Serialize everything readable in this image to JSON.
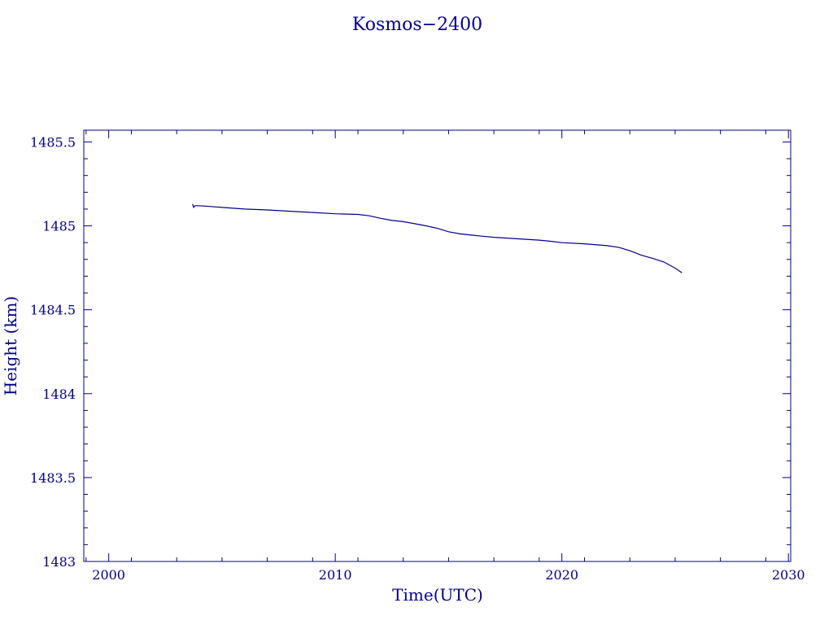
{
  "chart_data": {
    "type": "line",
    "title": "Kosmos−2400",
    "xlabel": "Time(UTC)",
    "ylabel": "Height (km)",
    "xlim": [
      1998.9,
      2030.1
    ],
    "ylim": [
      1483,
      1485.57
    ],
    "x_ticks": [
      2000,
      2010,
      2020,
      2030
    ],
    "x_tick_labels": [
      "2000",
      "2010",
      "2020",
      "2030"
    ],
    "y_ticks": [
      1483,
      1483.5,
      1484,
      1484.5,
      1485,
      1485.5
    ],
    "y_tick_labels": [
      "1483",
      "1483.5",
      "1484",
      "1484.5",
      "1485",
      "1485.5"
    ],
    "grid": false,
    "color": "#00008b",
    "series": [
      {
        "x": [
          2003.7,
          2003.75,
          2003.8,
          2004.0,
          2004.5,
          2005.0,
          2005.5,
          2006.0,
          2007.0,
          2008.0,
          2009.0,
          2010.0,
          2010.5,
          2011.0,
          2011.5,
          2012.0,
          2012.5,
          2013.0,
          2013.5,
          2014.0,
          2014.5,
          2015.0,
          2015.5,
          2016.0,
          2016.5,
          2017.0,
          2018.0,
          2019.0,
          2019.5,
          2020.0,
          2021.0,
          2022.0,
          2022.5,
          2023.0,
          2023.5,
          2024.0,
          2024.5,
          2025.0,
          2025.3
        ],
        "y": [
          1485.13,
          1485.11,
          1485.12,
          1485.12,
          1485.115,
          1485.11,
          1485.105,
          1485.1,
          1485.095,
          1485.087,
          1485.08,
          1485.072,
          1485.07,
          1485.068,
          1485.06,
          1485.045,
          1485.032,
          1485.025,
          1485.013,
          1485.0,
          1484.985,
          1484.965,
          1484.952,
          1484.945,
          1484.938,
          1484.932,
          1484.923,
          1484.915,
          1484.908,
          1484.9,
          1484.893,
          1484.882,
          1484.872,
          1484.852,
          1484.825,
          1484.807,
          1484.785,
          1484.748,
          1484.72
        ]
      }
    ]
  }
}
